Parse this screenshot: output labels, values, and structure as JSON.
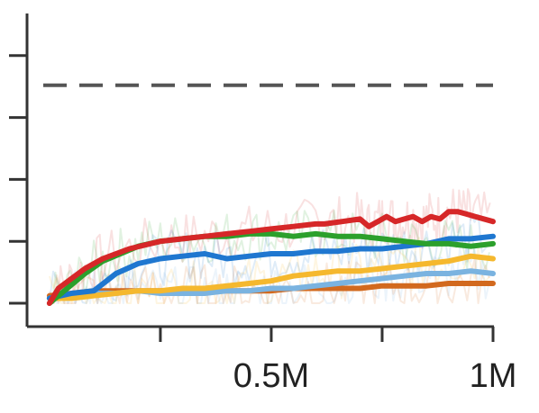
{
  "chart_data": {
    "type": "line",
    "title": "",
    "xlabel": "",
    "ylabel": "",
    "xlim": [
      -0.01,
      1.0
    ],
    "ylim": [
      0,
      1.17
    ],
    "x_ticks": [
      0.25,
      0.5,
      0.75,
      1.0
    ],
    "x_tick_labels": [
      "",
      "0.5M",
      "",
      "1M"
    ],
    "y_ticks": [
      0,
      0.25,
      0.5,
      0.75,
      1.0
    ],
    "y_tick_labels": [
      "",
      "",
      "",
      "",
      ""
    ],
    "grid": false,
    "reference_line": {
      "y": 0.88,
      "style": "dashed",
      "color": "#555555"
    },
    "series": [
      {
        "color": "#d62728",
        "x": [
          0.0,
          0.02,
          0.05,
          0.08,
          0.12,
          0.18,
          0.25,
          0.3,
          0.35,
          0.4,
          0.45,
          0.5,
          0.55,
          0.6,
          0.62,
          0.66,
          0.7,
          0.72,
          0.74,
          0.76,
          0.78,
          0.8,
          0.82,
          0.84,
          0.86,
          0.88,
          0.9,
          0.92,
          0.94,
          0.96,
          1.0
        ],
        "y": [
          0.0,
          0.06,
          0.1,
          0.14,
          0.18,
          0.22,
          0.25,
          0.26,
          0.27,
          0.28,
          0.29,
          0.3,
          0.31,
          0.32,
          0.32,
          0.33,
          0.34,
          0.31,
          0.33,
          0.35,
          0.33,
          0.34,
          0.35,
          0.33,
          0.35,
          0.34,
          0.37,
          0.37,
          0.36,
          0.35,
          0.33
        ]
      },
      {
        "color": "#2ca02c",
        "x": [
          0.0,
          0.04,
          0.08,
          0.12,
          0.16,
          0.2,
          0.25,
          0.3,
          0.35,
          0.4,
          0.45,
          0.5,
          0.55,
          0.6,
          0.65,
          0.7,
          0.75,
          0.8,
          0.85,
          0.9,
          0.95,
          1.0
        ],
        "y": [
          0.0,
          0.06,
          0.12,
          0.17,
          0.2,
          0.23,
          0.25,
          0.26,
          0.27,
          0.27,
          0.28,
          0.28,
          0.27,
          0.28,
          0.27,
          0.27,
          0.26,
          0.25,
          0.24,
          0.24,
          0.23,
          0.24
        ]
      },
      {
        "color": "#1f77d0",
        "x": [
          0.0,
          0.05,
          0.1,
          0.15,
          0.2,
          0.25,
          0.3,
          0.35,
          0.4,
          0.45,
          0.5,
          0.55,
          0.6,
          0.65,
          0.7,
          0.75,
          0.8,
          0.85,
          0.9,
          0.95,
          1.0
        ],
        "y": [
          0.02,
          0.04,
          0.05,
          0.12,
          0.16,
          0.18,
          0.19,
          0.2,
          0.18,
          0.19,
          0.2,
          0.2,
          0.21,
          0.21,
          0.22,
          0.22,
          0.23,
          0.24,
          0.26,
          0.26,
          0.27
        ]
      },
      {
        "color": "#f5b82e",
        "x": [
          0.0,
          0.05,
          0.1,
          0.15,
          0.2,
          0.25,
          0.3,
          0.35,
          0.4,
          0.45,
          0.5,
          0.55,
          0.6,
          0.65,
          0.7,
          0.75,
          0.8,
          0.85,
          0.9,
          0.95,
          1.0
        ],
        "y": [
          0.02,
          0.02,
          0.03,
          0.04,
          0.05,
          0.05,
          0.06,
          0.06,
          0.07,
          0.08,
          0.09,
          0.11,
          0.12,
          0.13,
          0.13,
          0.14,
          0.15,
          0.16,
          0.17,
          0.19,
          0.18
        ]
      },
      {
        "color": "#7ab3e0",
        "x": [
          0.0,
          0.05,
          0.1,
          0.15,
          0.2,
          0.25,
          0.3,
          0.35,
          0.4,
          0.45,
          0.5,
          0.55,
          0.6,
          0.65,
          0.7,
          0.75,
          0.8,
          0.85,
          0.9,
          0.95,
          1.0
        ],
        "y": [
          0.02,
          0.03,
          0.04,
          0.04,
          0.05,
          0.04,
          0.04,
          0.04,
          0.05,
          0.05,
          0.06,
          0.06,
          0.07,
          0.08,
          0.09,
          0.1,
          0.11,
          0.12,
          0.12,
          0.13,
          0.12
        ]
      },
      {
        "color": "#d2691e",
        "x": [
          0.0,
          0.05,
          0.1,
          0.15,
          0.2,
          0.25,
          0.3,
          0.35,
          0.4,
          0.45,
          0.5,
          0.55,
          0.6,
          0.65,
          0.7,
          0.75,
          0.8,
          0.85,
          0.9,
          0.95,
          1.0
        ],
        "y": [
          0.03,
          0.04,
          0.05,
          0.05,
          0.05,
          0.05,
          0.05,
          0.05,
          0.05,
          0.05,
          0.05,
          0.06,
          0.06,
          0.06,
          0.06,
          0.07,
          0.07,
          0.07,
          0.08,
          0.08,
          0.08
        ]
      }
    ]
  }
}
